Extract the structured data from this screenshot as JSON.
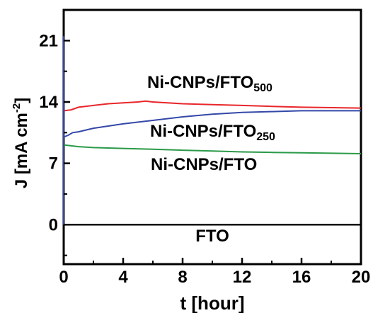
{
  "chart_data": {
    "type": "line",
    "xlabel": "t [hour]",
    "ylabel": "J [mA cm",
    "ylabel_sup": "-2",
    "ylabel_close": "]",
    "xlim": [
      0,
      20
    ],
    "ylim": [
      -4.5,
      24.5
    ],
    "xticks": [
      0,
      4,
      8,
      12,
      16,
      20
    ],
    "yticks": [
      0,
      7,
      14,
      21
    ],
    "grid": false,
    "legend": "none",
    "series": [
      {
        "name": "Ni-CNPs/FTO",
        "name_sub": "500",
        "color": "#e8262a",
        "x": [
          0,
          0.5,
          1,
          2,
          3,
          4,
          5,
          5.5,
          6,
          7,
          8,
          10,
          12,
          14,
          16,
          18,
          20
        ],
        "y": [
          13.0,
          13.1,
          13.4,
          13.6,
          13.8,
          13.9,
          14.0,
          14.1,
          14.0,
          13.9,
          13.8,
          13.7,
          13.6,
          13.5,
          13.4,
          13.35,
          13.3
        ]
      },
      {
        "name": "Ni-CNPs/FTO",
        "name_sub": "250",
        "color": "#3448a8",
        "x": [
          0,
          0.3,
          0.6,
          1,
          2,
          4,
          6,
          8,
          10,
          12,
          14,
          16,
          18,
          20
        ],
        "y": [
          10.0,
          10.2,
          10.5,
          10.6,
          11.0,
          11.5,
          11.9,
          12.3,
          12.6,
          12.8,
          12.9,
          13.0,
          13.0,
          13.0
        ]
      },
      {
        "name": "Ni-CNPs/FTO",
        "name_sub": "",
        "color": "#2a9a48",
        "x": [
          0,
          1,
          2,
          4,
          6,
          8,
          10,
          12,
          14,
          16,
          18,
          20
        ],
        "y": [
          9.1,
          8.9,
          8.8,
          8.7,
          8.6,
          8.5,
          8.4,
          8.3,
          8.25,
          8.2,
          8.15,
          8.1
        ]
      },
      {
        "name": "FTO",
        "name_sub": "",
        "color": "#000000",
        "x": [
          0,
          20
        ],
        "y": [
          0,
          0
        ]
      }
    ],
    "initial_spike": {
      "color": "#3448a8",
      "x": [
        0,
        0,
        0.02
      ],
      "y": [
        0,
        21.5,
        10.0
      ]
    }
  }
}
